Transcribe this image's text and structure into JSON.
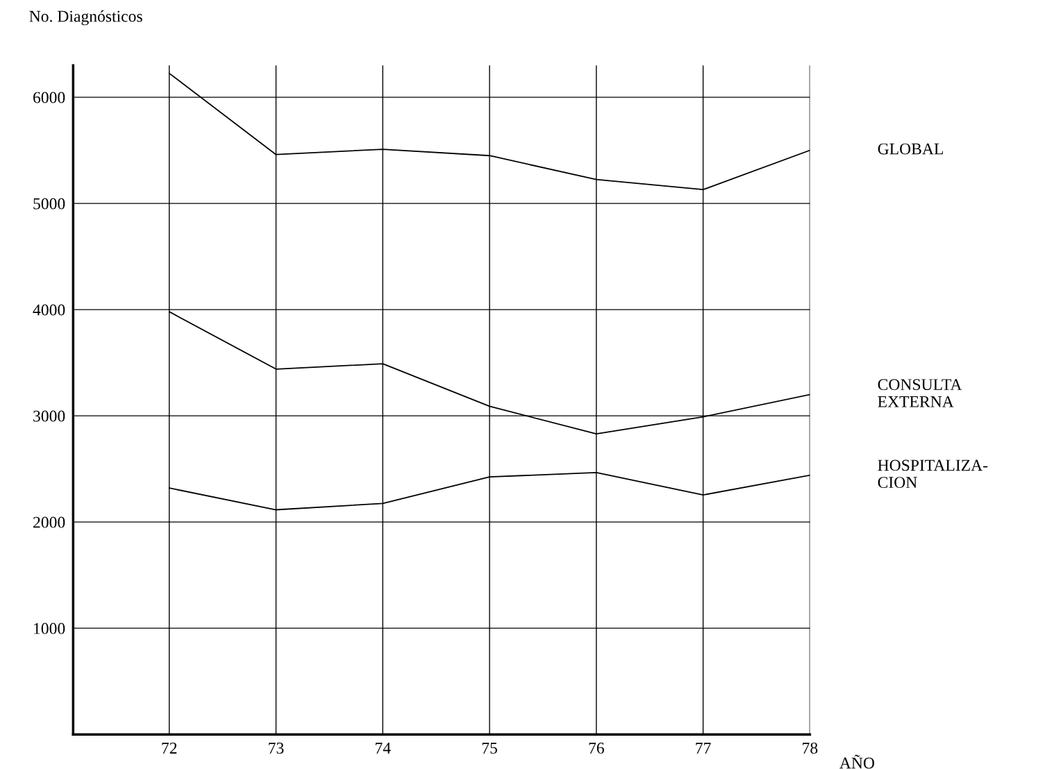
{
  "chart_data": {
    "type": "line",
    "ylabel": "No. Diagnósticos",
    "xlabel": "AÑO",
    "x": [
      72,
      73,
      74,
      75,
      76,
      77,
      78
    ],
    "series": [
      {
        "name": "GLOBAL",
        "color": "#000000",
        "values": [
          6225,
          5460,
          5510,
          5450,
          5225,
          5130,
          5500
        ]
      },
      {
        "name": "CONSULTA\nEXTERNA",
        "color": "#000000",
        "values": [
          3980,
          3440,
          3490,
          3090,
          2830,
          2990,
          3200
        ]
      },
      {
        "name": "HOSPITALIZA-\nCION",
        "color": "#000000",
        "values": [
          2320,
          2115,
          2175,
          2425,
          2465,
          2255,
          2440
        ]
      }
    ],
    "xlim": [
      71.1,
      78
    ],
    "ylim": [
      0,
      6300
    ],
    "xticks": [
      72,
      73,
      74,
      75,
      76,
      77,
      78
    ],
    "yticks": [
      {
        "value": 0,
        "label": null
      },
      1000,
      2000,
      3000,
      4000,
      5000,
      6000
    ],
    "grid": true,
    "marker": "none",
    "line_style": "solid",
    "legend": false
  }
}
